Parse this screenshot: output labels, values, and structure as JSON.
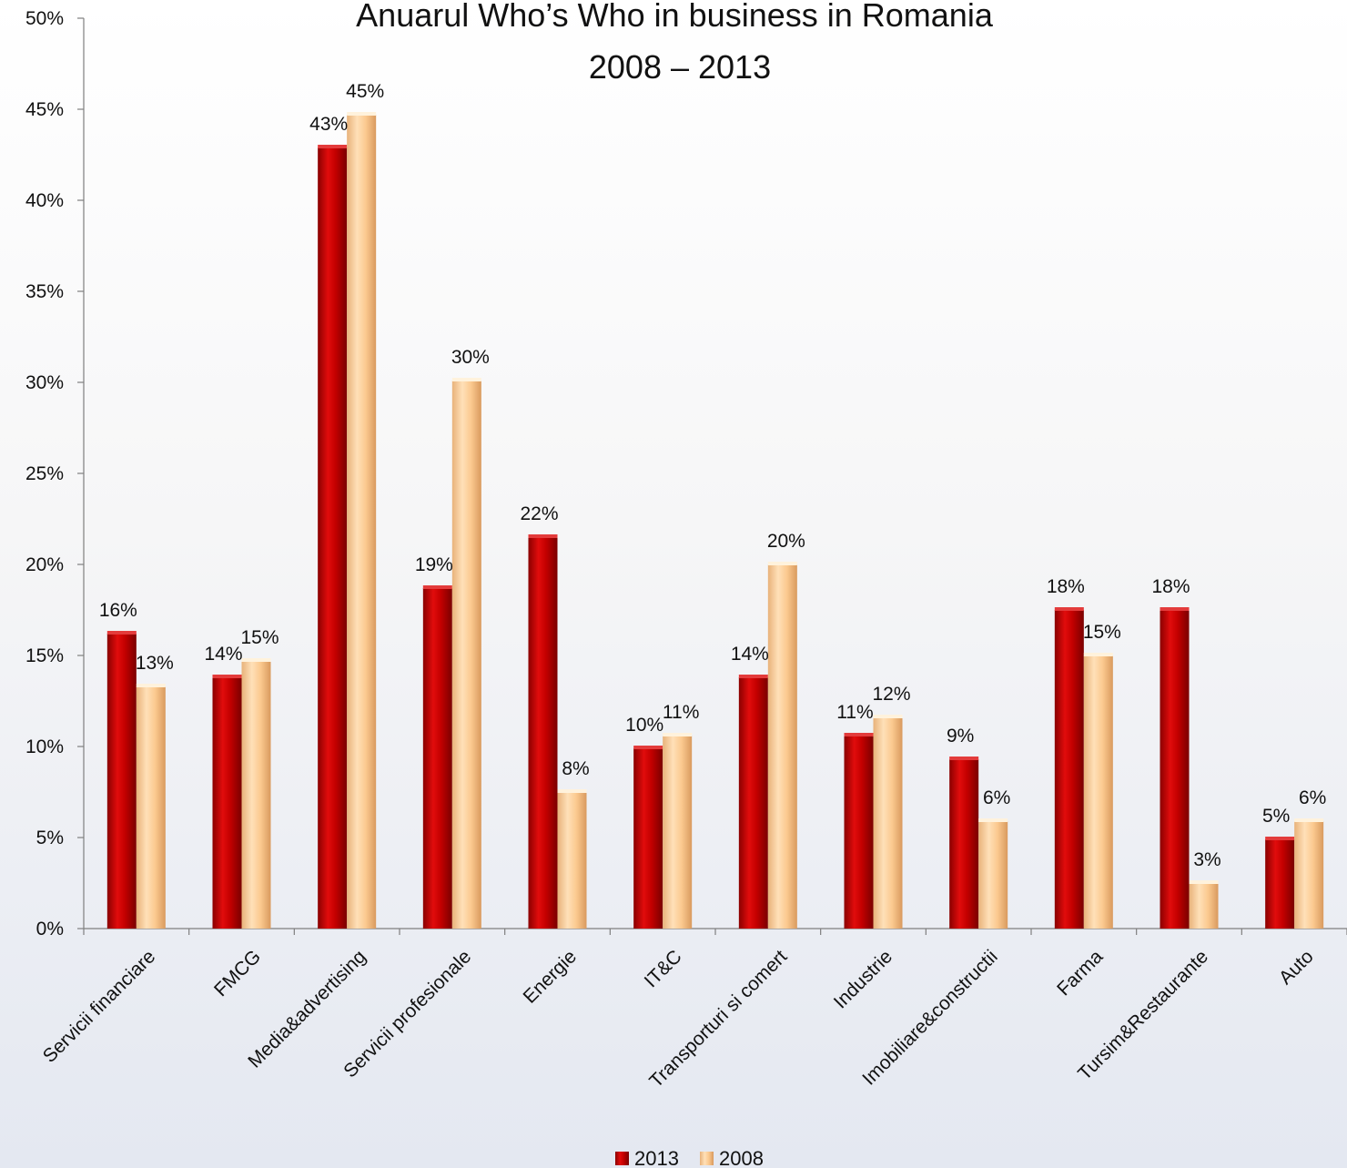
{
  "chart_data": {
    "type": "bar",
    "title": "Anuarul Who’s Who in business in Romania",
    "subtitle": "2008 – 2013",
    "xlabel": "",
    "ylabel": "",
    "ylim": [
      0,
      50
    ],
    "yticks": [
      "0%",
      "5%",
      "10%",
      "15%",
      "20%",
      "25%",
      "30%",
      "35%",
      "40%",
      "45%",
      "50%"
    ],
    "grid": false,
    "legend_position": "bottom",
    "categories": [
      "Servicii financiare",
      "FMCG",
      "Media&advertising",
      "Servicii profesionale",
      "Energie",
      "IT&C",
      "Transporturi si comert",
      "Industrie",
      "Imobiliare&constructii",
      "Farma",
      "Tursim&Restaurante",
      "Auto"
    ],
    "series": [
      {
        "name": "2013",
        "color": "#c00000",
        "values": [
          16.2,
          13.8,
          42.9,
          18.7,
          21.5,
          9.9,
          13.8,
          10.6,
          9.3,
          17.5,
          17.5,
          4.9
        ],
        "labels": [
          "16%",
          "14%",
          "43%",
          "19%",
          "22%",
          "10%",
          "14%",
          "11%",
          "9%",
          "18%",
          "18%",
          "5%"
        ]
      },
      {
        "name": "2008",
        "color": "#fbc98f",
        "values": [
          13.3,
          14.7,
          44.7,
          30.1,
          7.5,
          10.6,
          20.0,
          11.6,
          5.9,
          15.0,
          2.5,
          5.9
        ],
        "labels": [
          "13%",
          "15%",
          "45%",
          "30%",
          "8%",
          "11%",
          "20%",
          "12%",
          "6%",
          "15%",
          "3%",
          "6%"
        ]
      }
    ]
  }
}
